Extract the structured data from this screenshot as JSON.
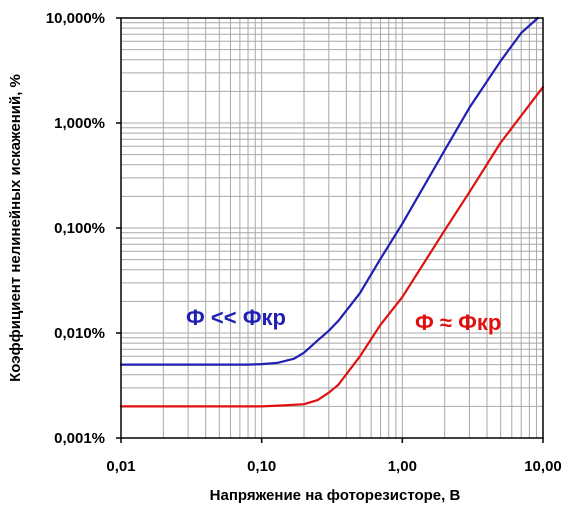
{
  "chart_data": {
    "type": "line",
    "xlabel": "Напряжение на фоторезисторе, В",
    "ylabel": "Коэффициент нелинейных искажений, %",
    "xscale": "log",
    "yscale": "log",
    "xlim": [
      0.01,
      10
    ],
    "ylim": [
      0.001,
      10
    ],
    "grid": true,
    "x_ticks": [
      0.01,
      0.1,
      1,
      10
    ],
    "x_tick_labels": [
      "0,01",
      "0,10",
      "1,00",
      "10,00"
    ],
    "y_ticks": [
      0.001,
      0.01,
      0.1,
      1,
      10
    ],
    "y_tick_labels": [
      "0,001%",
      "0,010%",
      "0,100%",
      "1,000%",
      "10,000%"
    ],
    "series": [
      {
        "name": "Ф << Фкр",
        "color": "#1f1fb4",
        "x": [
          0.01,
          0.05,
          0.08,
          0.1,
          0.13,
          0.17,
          0.2,
          0.25,
          0.3,
          0.35,
          0.5,
          0.7,
          1,
          2,
          3,
          5,
          7,
          9.2
        ],
        "y": [
          0.005,
          0.005,
          0.005,
          0.00505,
          0.0052,
          0.0057,
          0.0065,
          0.0085,
          0.0105,
          0.013,
          0.024,
          0.051,
          0.11,
          0.55,
          1.4,
          3.9,
          7.2,
          10
        ]
      },
      {
        "name": "Ф ≈ Фкр",
        "color": "#e01010",
        "x": [
          0.01,
          0.05,
          0.1,
          0.15,
          0.2,
          0.25,
          0.3,
          0.35,
          0.5,
          0.7,
          1,
          2,
          3,
          5,
          10
        ],
        "y": [
          0.002,
          0.002,
          0.002,
          0.00205,
          0.0021,
          0.0023,
          0.0027,
          0.0032,
          0.006,
          0.012,
          0.022,
          0.095,
          0.22,
          0.65,
          2.2
        ]
      }
    ]
  },
  "colors": {
    "grid": "#a8a8a8",
    "axis": "#000000"
  }
}
